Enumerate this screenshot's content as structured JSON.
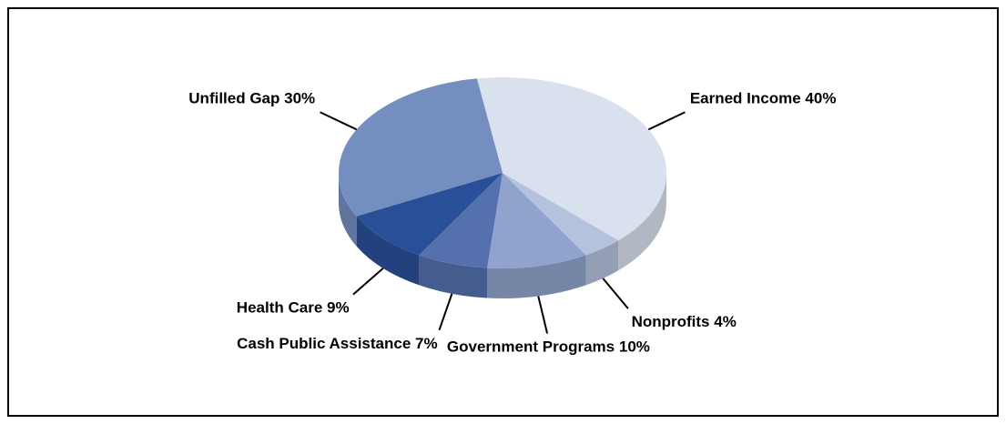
{
  "chart_data": {
    "type": "pie3d",
    "categories": [
      "Earned Income",
      "Nonprofits",
      "Government Programs",
      "Cash Public Assistance",
      "Health Care",
      "Unfilled Gap"
    ],
    "values": [
      40,
      4,
      10,
      7,
      9,
      30
    ],
    "value_labels": [
      "40%",
      "4%",
      "10%",
      "7%",
      "9%",
      "30%"
    ],
    "colors": [
      "#d9e0ee",
      "#b4c2de",
      "#8fa3cc",
      "#5470ad",
      "#2a4f99",
      "#748fbf"
    ]
  }
}
